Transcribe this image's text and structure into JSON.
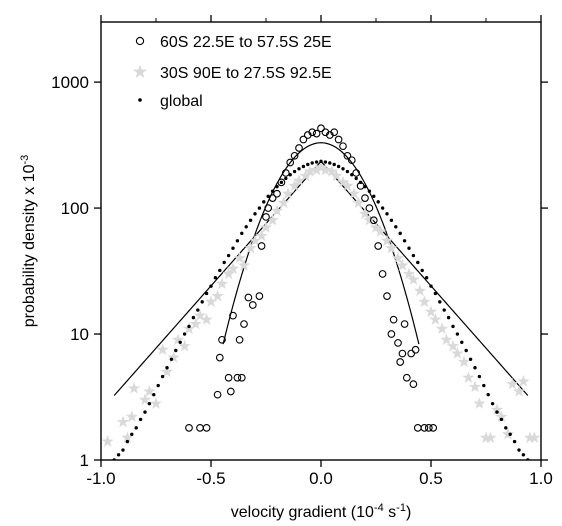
{
  "chart_data": {
    "type": "scatter",
    "xlabel": {
      "main": "velocity gradient (10",
      "sup1": "-4",
      "mid": " s",
      "sup2": "-1",
      "end": ")"
    },
    "ylabel": {
      "main": "probability density x 10",
      "sup": "-3"
    },
    "xlim": [
      -1.0,
      1.0
    ],
    "ylim": [
      1,
      3000
    ],
    "yscale": "log",
    "x_ticks": [
      "-1.0",
      "-0.5",
      "0.0",
      "0.5",
      "1.0"
    ],
    "x_tick_values": [
      -1.0,
      -0.5,
      0.0,
      0.5,
      1.0
    ],
    "y_ticks": [
      "1",
      "10",
      "100",
      "1000"
    ],
    "y_tick_values": [
      1,
      10,
      100,
      1000
    ],
    "legend_position": "top-left",
    "series": [
      {
        "name": "60S 22.5E to 57.5S 25E",
        "marker": "open-circle",
        "color": "#000000",
        "points": [
          [
            -0.6,
            1.8
          ],
          [
            -0.55,
            1.8
          ],
          [
            -0.52,
            1.8
          ],
          [
            -0.47,
            3.3
          ],
          [
            -0.46,
            6.5
          ],
          [
            -0.45,
            9.0
          ],
          [
            -0.42,
            4.5
          ],
          [
            -0.41,
            3.5
          ],
          [
            -0.4,
            14.0
          ],
          [
            -0.38,
            4.5
          ],
          [
            -0.37,
            9.0
          ],
          [
            -0.36,
            4.5
          ],
          [
            -0.35,
            12.0
          ],
          [
            -0.33,
            19.5
          ],
          [
            -0.31,
            17.0
          ],
          [
            -0.28,
            20.0
          ],
          [
            -0.27,
            50.0
          ],
          [
            -0.25,
            85.0
          ],
          [
            -0.24,
            100.0
          ],
          [
            -0.22,
            120.0
          ],
          [
            -0.2,
            130.0
          ],
          [
            -0.18,
            160.0
          ],
          [
            -0.16,
            190.0
          ],
          [
            -0.14,
            230.0
          ],
          [
            -0.12,
            260.0
          ],
          [
            -0.1,
            300.0
          ],
          [
            -0.08,
            350.0
          ],
          [
            -0.06,
            380.0
          ],
          [
            -0.04,
            400.0
          ],
          [
            -0.02,
            390.0
          ],
          [
            0.0,
            430.0
          ],
          [
            0.02,
            400.0
          ],
          [
            0.04,
            380.0
          ],
          [
            0.06,
            400.0
          ],
          [
            0.08,
            350.0
          ],
          [
            0.1,
            310.0
          ],
          [
            0.12,
            260.0
          ],
          [
            0.14,
            240.0
          ],
          [
            0.16,
            190.0
          ],
          [
            0.18,
            150.0
          ],
          [
            0.2,
            120.0
          ],
          [
            0.22,
            100.0
          ],
          [
            0.24,
            80.0
          ],
          [
            0.26,
            50.0
          ],
          [
            0.28,
            30.0
          ],
          [
            0.3,
            20.0
          ],
          [
            0.32,
            10.0
          ],
          [
            0.33,
            13.0
          ],
          [
            0.35,
            8.5
          ],
          [
            0.36,
            6.0
          ],
          [
            0.37,
            7.0
          ],
          [
            0.38,
            12.0
          ],
          [
            0.39,
            4.5
          ],
          [
            0.41,
            7.0
          ],
          [
            0.42,
            4.0
          ],
          [
            0.43,
            7.5
          ],
          [
            0.44,
            1.8
          ],
          [
            0.47,
            1.8
          ],
          [
            0.49,
            1.8
          ],
          [
            0.51,
            1.8
          ]
        ]
      },
      {
        "name": "30S 90E to 27.5S 92.5E",
        "marker": "star",
        "color": "#d9d9d9",
        "points": [
          [
            -0.97,
            1.4
          ],
          [
            -0.9,
            2.0
          ],
          [
            -0.88,
            1.5
          ],
          [
            -0.86,
            2.2
          ],
          [
            -0.85,
            3.7
          ],
          [
            -0.8,
            3.0
          ],
          [
            -0.78,
            3.5
          ],
          [
            -0.75,
            2.8
          ],
          [
            -0.72,
            7.5
          ],
          [
            -0.7,
            5.0
          ],
          [
            -0.67,
            6.5
          ],
          [
            -0.65,
            9.0
          ],
          [
            -0.62,
            8.0
          ],
          [
            -0.6,
            11.0
          ],
          [
            -0.57,
            12.0
          ],
          [
            -0.55,
            14.0
          ],
          [
            -0.52,
            13.0
          ],
          [
            -0.5,
            18.0
          ],
          [
            -0.47,
            20.0
          ],
          [
            -0.45,
            25.0
          ],
          [
            -0.42,
            30.0
          ],
          [
            -0.4,
            33.0
          ],
          [
            -0.37,
            40.0
          ],
          [
            -0.35,
            35.0
          ],
          [
            -0.32,
            48.0
          ],
          [
            -0.3,
            55.0
          ],
          [
            -0.27,
            60.0
          ],
          [
            -0.25,
            70.0
          ],
          [
            -0.22,
            80.0
          ],
          [
            -0.2,
            95.0
          ],
          [
            -0.17,
            110.0
          ],
          [
            -0.15,
            130.0
          ],
          [
            -0.12,
            150.0
          ],
          [
            -0.1,
            165.0
          ],
          [
            -0.07,
            180.0
          ],
          [
            -0.05,
            195.0
          ],
          [
            -0.02,
            200.0
          ],
          [
            0.0,
            210.0
          ],
          [
            0.02,
            200.0
          ],
          [
            0.05,
            195.0
          ],
          [
            0.07,
            180.0
          ],
          [
            0.1,
            160.0
          ],
          [
            0.12,
            150.0
          ],
          [
            0.15,
            130.0
          ],
          [
            0.17,
            110.0
          ],
          [
            0.2,
            90.0
          ],
          [
            0.22,
            80.0
          ],
          [
            0.25,
            70.0
          ],
          [
            0.27,
            65.0
          ],
          [
            0.3,
            55.0
          ],
          [
            0.32,
            48.0
          ],
          [
            0.35,
            40.0
          ],
          [
            0.37,
            35.0
          ],
          [
            0.4,
            30.0
          ],
          [
            0.42,
            27.0
          ],
          [
            0.45,
            22.0
          ],
          [
            0.47,
            18.0
          ],
          [
            0.5,
            15.0
          ],
          [
            0.52,
            13.0
          ],
          [
            0.55,
            11.0
          ],
          [
            0.57,
            9.0
          ],
          [
            0.6,
            8.0
          ],
          [
            0.62,
            7.0
          ],
          [
            0.65,
            6.0
          ],
          [
            0.67,
            4.5
          ],
          [
            0.7,
            3.8
          ],
          [
            0.72,
            2.8
          ],
          [
            0.75,
            1.5
          ],
          [
            0.77,
            1.5
          ],
          [
            0.8,
            2.5
          ],
          [
            0.82,
            2.2
          ],
          [
            0.85,
            1.6
          ],
          [
            0.87,
            4.0
          ],
          [
            0.9,
            3.5
          ],
          [
            0.92,
            4.2
          ],
          [
            0.95,
            1.5
          ],
          [
            0.97,
            1.5
          ]
        ]
      },
      {
        "name": "global",
        "marker": "dot",
        "color": "#000000",
        "points": [
          [
            -0.94,
            1.0
          ],
          [
            -0.92,
            1.1
          ],
          [
            -0.9,
            1.2
          ],
          [
            -0.88,
            1.4
          ],
          [
            -0.86,
            1.6
          ],
          [
            -0.84,
            1.8
          ],
          [
            -0.82,
            2.1
          ],
          [
            -0.8,
            2.4
          ],
          [
            -0.78,
            2.8
          ],
          [
            -0.76,
            3.3
          ],
          [
            -0.74,
            3.9
          ],
          [
            -0.72,
            4.6
          ],
          [
            -0.7,
            5.4
          ],
          [
            -0.68,
            6.3
          ],
          [
            -0.66,
            7.4
          ],
          [
            -0.64,
            8.6
          ],
          [
            -0.62,
            10.0
          ],
          [
            -0.6,
            11.5
          ],
          [
            -0.58,
            13.5
          ],
          [
            -0.56,
            15.5
          ],
          [
            -0.54,
            18.0
          ],
          [
            -0.52,
            21.0
          ],
          [
            -0.5,
            24.0
          ],
          [
            -0.48,
            28.0
          ],
          [
            -0.46,
            32.0
          ],
          [
            -0.44,
            37.0
          ],
          [
            -0.42,
            42.0
          ],
          [
            -0.4,
            48.0
          ],
          [
            -0.38,
            55.0
          ],
          [
            -0.36,
            63.0
          ],
          [
            -0.34,
            71.0
          ],
          [
            -0.32,
            80.0
          ],
          [
            -0.3,
            90.0
          ],
          [
            -0.28,
            100.0
          ],
          [
            -0.26,
            112.0
          ],
          [
            -0.24,
            124.0
          ],
          [
            -0.22,
            136.0
          ],
          [
            -0.2,
            148.0
          ],
          [
            -0.18,
            160.0
          ],
          [
            -0.16,
            172.0
          ],
          [
            -0.14,
            184.0
          ],
          [
            -0.12,
            195.0
          ],
          [
            -0.1,
            205.0
          ],
          [
            -0.08,
            214.0
          ],
          [
            -0.06,
            222.0
          ],
          [
            -0.04,
            228.0
          ],
          [
            -0.02,
            232.0
          ],
          [
            0.0,
            235.0
          ],
          [
            0.02,
            232.0
          ],
          [
            0.04,
            228.0
          ],
          [
            0.06,
            222.0
          ],
          [
            0.08,
            214.0
          ],
          [
            0.1,
            205.0
          ],
          [
            0.12,
            195.0
          ],
          [
            0.14,
            184.0
          ],
          [
            0.16,
            172.0
          ],
          [
            0.18,
            160.0
          ],
          [
            0.2,
            148.0
          ],
          [
            0.22,
            136.0
          ],
          [
            0.24,
            124.0
          ],
          [
            0.26,
            112.0
          ],
          [
            0.28,
            100.0
          ],
          [
            0.3,
            90.0
          ],
          [
            0.32,
            80.0
          ],
          [
            0.34,
            71.0
          ],
          [
            0.36,
            63.0
          ],
          [
            0.38,
            55.0
          ],
          [
            0.4,
            48.0
          ],
          [
            0.42,
            42.0
          ],
          [
            0.44,
            37.0
          ],
          [
            0.46,
            32.0
          ],
          [
            0.48,
            28.0
          ],
          [
            0.5,
            24.0
          ],
          [
            0.52,
            21.0
          ],
          [
            0.54,
            18.0
          ],
          [
            0.56,
            15.5
          ],
          [
            0.58,
            13.5
          ],
          [
            0.6,
            11.5
          ],
          [
            0.62,
            10.0
          ],
          [
            0.64,
            8.6
          ],
          [
            0.66,
            7.4
          ],
          [
            0.68,
            6.3
          ],
          [
            0.7,
            5.4
          ],
          [
            0.72,
            4.6
          ],
          [
            0.74,
            3.9
          ],
          [
            0.76,
            3.3
          ],
          [
            0.78,
            2.8
          ],
          [
            0.8,
            2.4
          ],
          [
            0.82,
            2.1
          ],
          [
            0.84,
            1.8
          ],
          [
            0.86,
            1.6
          ],
          [
            0.88,
            1.4
          ],
          [
            0.9,
            1.2
          ],
          [
            0.92,
            1.1
          ],
          [
            0.94,
            1.0
          ]
        ]
      }
    ],
    "fit_curves": [
      {
        "peak": 330,
        "sigma": 0.164,
        "x_range": [
          -0.445,
          0.445
        ],
        "color": "#000000"
      },
      {
        "peak": 235,
        "decay": 0.2196,
        "x_range": [
          -0.94,
          0.94
        ],
        "color": "#000000"
      }
    ]
  }
}
